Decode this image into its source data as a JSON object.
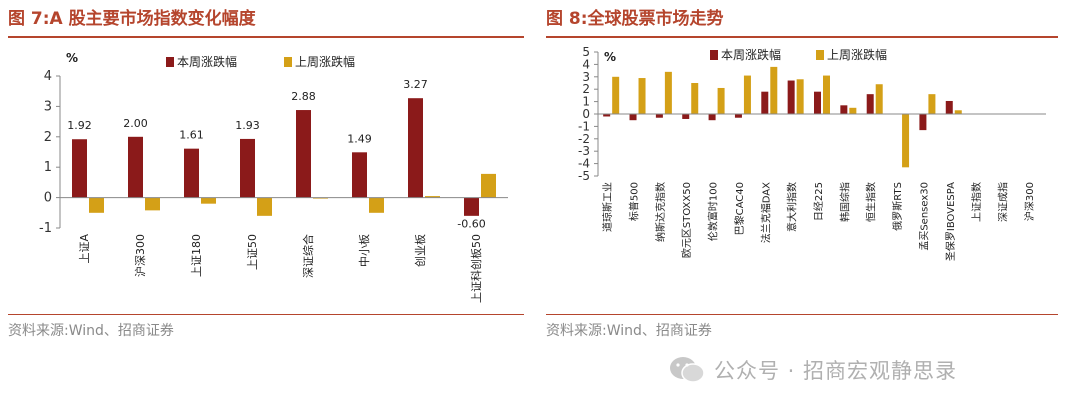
{
  "figures": [
    {
      "title": "图 7:A 股主要市场指数变化幅度",
      "source": "资料来源:Wind、招商证券"
    },
    {
      "title": "图 8:全球股票市场走势",
      "source": "资料来源:Wind、招商证券"
    }
  ],
  "watermark": "公众号 · 招商宏观静思录",
  "colors": {
    "accent": "#b5452d",
    "this_week": "#8b1a1a",
    "last_week": "#d4a017"
  },
  "chart_data": [
    {
      "type": "bar",
      "unit_label": "%",
      "categories": [
        "上证A",
        "沪深300",
        "上证180",
        "上证50",
        "深证综合",
        "中小板",
        "创业板",
        "上证科创板50"
      ],
      "series": [
        {
          "name": "本周涨跌幅",
          "values": [
            1.92,
            2.0,
            1.61,
            1.93,
            2.88,
            1.49,
            3.27,
            -0.6
          ]
        },
        {
          "name": "上周涨跌幅",
          "values": [
            -0.5,
            -0.42,
            -0.2,
            -0.6,
            -0.02,
            -0.5,
            0.05,
            0.78
          ]
        }
      ],
      "data_labels": [
        "1.92",
        "2.00",
        "1.61",
        "1.93",
        "2.88",
        "1.49",
        "3.27",
        "-0.60"
      ],
      "ylim": [
        -1,
        4
      ],
      "yticks": [
        "4",
        "3",
        "2",
        "1",
        "0",
        "-1"
      ],
      "legend": "top-center"
    },
    {
      "type": "bar",
      "unit_label": "%",
      "categories": [
        "道琼斯工业",
        "标普500",
        "纳斯达克指数",
        "欧元区STOXX50",
        "伦敦富时100",
        "巴黎CAC40",
        "法兰克福DAX",
        "意大利指数",
        "日经225",
        "韩国综指",
        "恒生指数",
        "俄罗斯RTS",
        "孟买Sensex30",
        "圣保罗IBOVESPA",
        "上证指数",
        "深证成指",
        "沪深300"
      ],
      "series": [
        {
          "name": "本周涨跌幅",
          "values": [
            -0.2,
            -0.5,
            -0.3,
            -0.4,
            -0.5,
            -0.3,
            1.8,
            2.7,
            1.8,
            0.7,
            1.6,
            0,
            -1.3,
            1.05,
            0,
            0,
            0
          ]
        },
        {
          "name": "上周涨跌幅",
          "values": [
            3.0,
            2.9,
            3.4,
            2.5,
            2.1,
            3.1,
            3.8,
            2.8,
            3.1,
            0.5,
            2.4,
            -4.3,
            1.6,
            0.3,
            0,
            0,
            0
          ]
        }
      ],
      "ylim": [
        -5,
        5
      ],
      "yticks": [
        "5",
        "4",
        "3",
        "2",
        "1",
        "0",
        "-1",
        "-2",
        "-3",
        "-4",
        "-5"
      ],
      "legend": "top-center"
    }
  ]
}
